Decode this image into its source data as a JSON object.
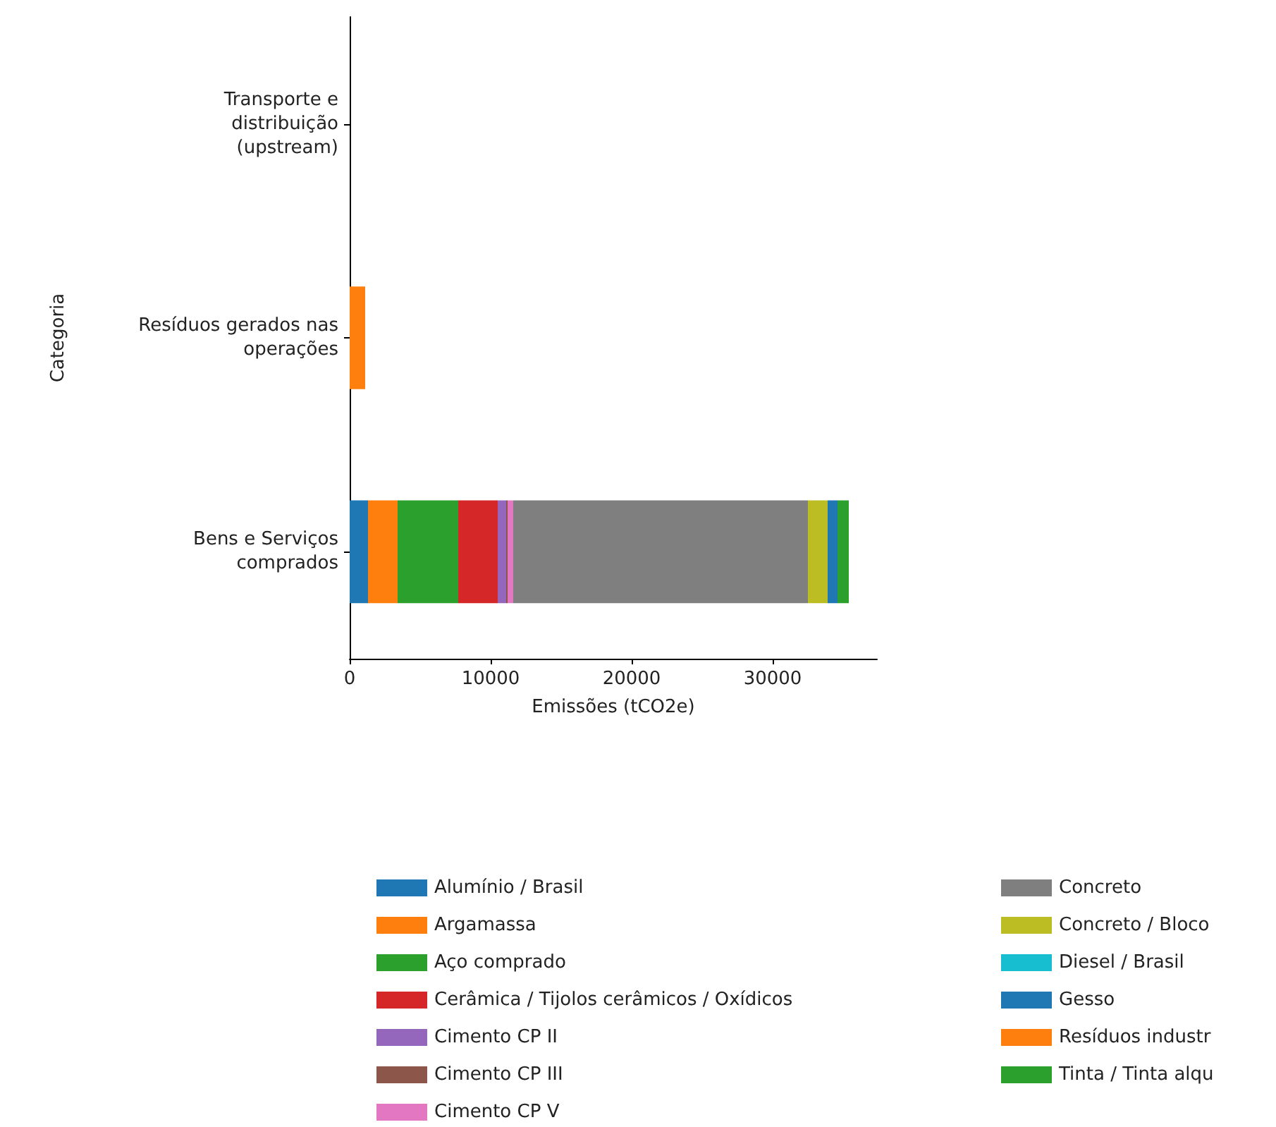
{
  "chart_data": {
    "type": "bar",
    "orientation": "horizontal",
    "stacked": true,
    "categories": [
      "Transporte e\ndistribuição\n(upstream)",
      "Resíduos gerados nas\noperações",
      "Bens e Serviços\ncomprados"
    ],
    "xlabel": "Emissões (tCO2e)",
    "ylabel": "Categoria",
    "xlim": [
      0,
      37400
    ],
    "xticks": [
      0,
      10000,
      20000,
      30000
    ],
    "grid": false,
    "legend": "bottom",
    "series": [
      {
        "name": "Alumínio / Brasil",
        "color": "#1f77b4",
        "values": [
          null,
          null,
          1300
        ]
      },
      {
        "name": "Argamassa",
        "color": "#ff7f0e",
        "values": [
          null,
          null,
          2100
        ]
      },
      {
        "name": "Aço comprado",
        "color": "#2ca02c",
        "values": [
          null,
          null,
          4300
        ]
      },
      {
        "name": "Cerâmica / Tijolos cerâmicos / Oxídicos",
        "color": "#d62728",
        "values": [
          null,
          null,
          2800
        ]
      },
      {
        "name": "Cimento CP II",
        "color": "#9467bd",
        "values": [
          null,
          null,
          600
        ]
      },
      {
        "name": "Cimento CP III",
        "color": "#8c564b",
        "values": [
          null,
          null,
          100
        ]
      },
      {
        "name": "Cimento CP V",
        "color": "#e377c2",
        "values": [
          null,
          null,
          400
        ]
      },
      {
        "name": "Concreto",
        "color": "#7f7f7f",
        "values": [
          null,
          null,
          20900
        ]
      },
      {
        "name": "Concreto / Bloco",
        "color": "#bcbd22",
        "values": [
          null,
          null,
          1400
        ]
      },
      {
        "name": "Diesel / Brasil",
        "color": "#17becf",
        "values": [
          null,
          null,
          null
        ]
      },
      {
        "name": "Gesso",
        "color": "#1f77b4",
        "values": [
          null,
          null,
          700
        ]
      },
      {
        "name": "Resíduos industr",
        "color": "#ff7f0e",
        "values": [
          null,
          1100,
          null
        ]
      },
      {
        "name": "Tinta / Tinta alqu",
        "color": "#2ca02c",
        "values": [
          null,
          null,
          800
        ]
      }
    ]
  }
}
